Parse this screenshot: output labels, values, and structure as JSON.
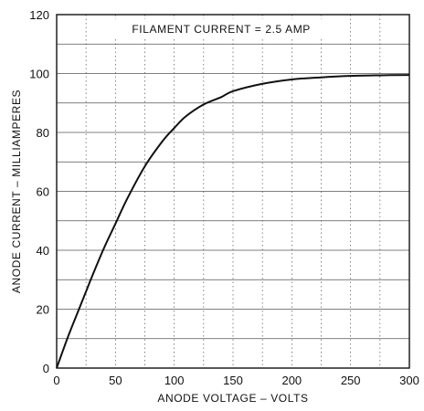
{
  "chart_data": {
    "type": "line",
    "title": "",
    "annotation": "FILAMENT CURRENT = 2.5 AMP",
    "xlabel": "ANODE VOLTAGE – VOLTS",
    "ylabel": "ANODE CURRENT – MILLIAMPERES",
    "xlim": [
      0,
      300
    ],
    "ylim": [
      0,
      120
    ],
    "x_ticks": [
      0,
      50,
      100,
      150,
      200,
      250,
      300
    ],
    "y_ticks": [
      0,
      20,
      40,
      60,
      80,
      100,
      120
    ],
    "x_gridlines": [
      0,
      25,
      50,
      75,
      100,
      125,
      150,
      175,
      200,
      225,
      250,
      275,
      300
    ],
    "y_gridlines": [
      0,
      10,
      20,
      30,
      40,
      50,
      60,
      70,
      80,
      90,
      100,
      110,
      120
    ],
    "grid": true,
    "series": [
      {
        "x": [
          0,
          10,
          20,
          25,
          30,
          40,
          50,
          60,
          75,
          90,
          100,
          110,
          125,
          140,
          150,
          175,
          200,
          225,
          250,
          275,
          300
        ],
        "y": [
          0,
          11,
          21,
          26,
          31,
          40.5,
          49,
          57.5,
          68.5,
          77,
          81.5,
          85.5,
          89.5,
          92,
          94,
          96.5,
          98,
          98.7,
          99.2,
          99.4,
          99.5
        ]
      }
    ]
  },
  "colors": {
    "line": "#111111",
    "grid": "#555555",
    "background": "#ffffff"
  }
}
